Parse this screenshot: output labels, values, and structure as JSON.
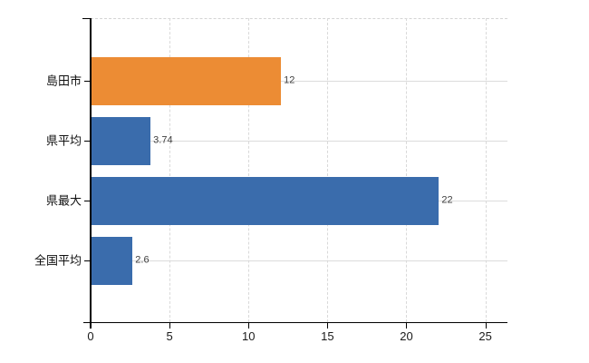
{
  "chart_data": {
    "type": "bar",
    "orientation": "horizontal",
    "title": "",
    "xlabel": "",
    "ylabel": "",
    "categories": [
      "島田市",
      "県平均",
      "県最大",
      "全国平均"
    ],
    "values": [
      12,
      3.74,
      22,
      2.6
    ],
    "value_labels": [
      "12",
      "3.74",
      "22",
      "2.6"
    ],
    "series_colors": [
      "#ec8c34",
      "#3a6cac",
      "#3a6cac",
      "#3a6cac"
    ],
    "x_ticks": [
      0,
      5,
      10,
      15,
      20,
      25
    ],
    "x_tick_labels": [
      "0",
      "5",
      "10",
      "15",
      "20",
      "25"
    ],
    "xlim": [
      0,
      26.4
    ],
    "grid": true,
    "grid_vertical_style": "dashed",
    "grid_horizontal_style": "solid",
    "legend": false
  },
  "colors": {
    "bar_orange": "#ec8c34",
    "bar_blue": "#3a6cac",
    "grid": "#dcdcdc",
    "grid_dashed": "#d9d9d9",
    "axis": "#000000",
    "value_label": "#404040",
    "tick_label": "#1a1a1a",
    "background": "#ffffff"
  }
}
